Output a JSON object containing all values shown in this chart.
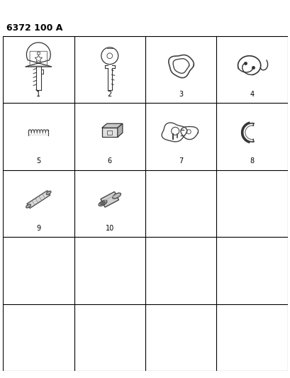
{
  "title": "6372 100 A",
  "background_color": "#ffffff",
  "grid_color": "#000000",
  "text_color": "#000000",
  "rows": 5,
  "cols": 4,
  "fig_width": 4.1,
  "fig_height": 5.33,
  "title_fontsize": 9,
  "label_fontsize": 7,
  "items": [
    {
      "num": "1",
      "row": 0,
      "col": 0,
      "type": "key_blade"
    },
    {
      "num": "2",
      "row": 0,
      "col": 1,
      "type": "key_plain"
    },
    {
      "num": "3",
      "row": 0,
      "col": 2,
      "type": "ring"
    },
    {
      "num": "4",
      "row": 0,
      "col": 3,
      "type": "clip_spring"
    },
    {
      "num": "5",
      "row": 1,
      "col": 0,
      "type": "coil_spring"
    },
    {
      "num": "6",
      "row": 1,
      "col": 1,
      "type": "wafer"
    },
    {
      "num": "7",
      "row": 1,
      "col": 2,
      "type": "lock_plate"
    },
    {
      "num": "8",
      "row": 1,
      "col": 3,
      "type": "c_clip"
    },
    {
      "num": "9",
      "row": 2,
      "col": 0,
      "type": "roll_pin_long"
    },
    {
      "num": "10",
      "row": 2,
      "col": 1,
      "type": "roll_pin_short"
    }
  ]
}
